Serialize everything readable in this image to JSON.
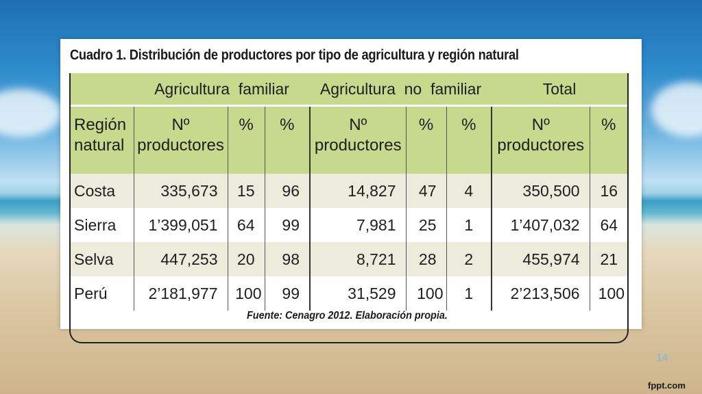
{
  "slide": {
    "caption": "Cuadro 1. Distribución de productores por tipo de agricultura y región natural",
    "source": "Fuente: Cenagro 2012. Elaboración propia.",
    "page_number": "14",
    "brand": "fppt.com"
  },
  "table": {
    "groups": {
      "familiar": "Agricultura  familiar",
      "no_familiar": "Agricultura  no  familiar",
      "total": "Total"
    },
    "headers": {
      "region": [
        "Región",
        "natural"
      ],
      "n_productores": [
        "Nº",
        "productores"
      ],
      "pct": "%"
    },
    "rows": [
      {
        "region": "Costa",
        "af_n": "335,673",
        "af_p1": "15",
        "af_p2": "96",
        "anf_n": "14,827",
        "anf_p1": "47",
        "anf_p2": "4",
        "t_n": "350,500",
        "t_p": "16"
      },
      {
        "region": "Sierra",
        "af_n": "1’399,051",
        "af_p1": "64",
        "af_p2": "99",
        "anf_n": "7,981",
        "anf_p1": "25",
        "anf_p2": "1",
        "t_n": "1’407,032",
        "t_p": "64"
      },
      {
        "region": "Selva",
        "af_n": "447,253",
        "af_p1": "20",
        "af_p2": "98",
        "anf_n": "8,721",
        "anf_p1": "28",
        "anf_p2": "2",
        "t_n": "455,974",
        "t_p": "21"
      },
      {
        "region": "Perú",
        "af_n": "2’181,977",
        "af_p1": "100",
        "af_p2": "99",
        "anf_n": "31,529",
        "anf_p1": "100",
        "anf_p2": "1",
        "t_n": "2’213,506",
        "t_p": "100"
      }
    ]
  }
}
